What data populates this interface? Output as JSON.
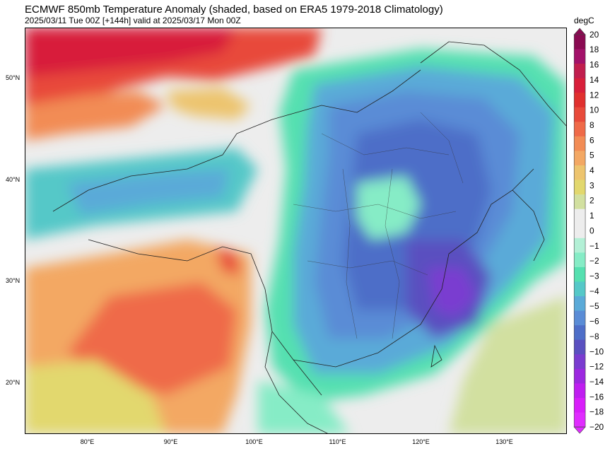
{
  "header": {
    "title": "ECMWF 850mb Temperature Anomaly (shaded, based on ERA5 1979-2018 Climatology)",
    "subtitle": "2025/03/11 Tue 00Z [+144h] valid at 2025/03/17 Mon 00Z"
  },
  "map": {
    "lon_range": [
      72.5,
      137.5
    ],
    "lat_range": [
      15,
      55
    ],
    "lon_ticks": [
      "80°E",
      "90°E",
      "100°E",
      "110°E",
      "120°E",
      "130°E"
    ],
    "lat_ticks": [
      "50°N",
      "40°N",
      "30°N",
      "20°N"
    ]
  },
  "colorbar": {
    "unit": "degC",
    "levels": [
      "20",
      "18",
      "16",
      "14",
      "12",
      "10",
      "8",
      "6",
      "5",
      "4",
      "3",
      "2",
      "1",
      "0",
      "−1",
      "−2",
      "−3",
      "−4",
      "−5",
      "−6",
      "−8",
      "−10",
      "−12",
      "−14",
      "−16",
      "−18",
      "−20"
    ],
    "colors": [
      "#8a0a52",
      "#a3126a",
      "#c11e4e",
      "#d81f3a",
      "#e0302e",
      "#e84a3a",
      "#ef6a48",
      "#f28c55",
      "#f3a864",
      "#edc46e",
      "#e2d86e",
      "#d2e0a0",
      "#ededed",
      "#ededed",
      "#b3f0d6",
      "#86ecc6",
      "#55e0b0",
      "#55c8c8",
      "#5aaad8",
      "#5a8cd6",
      "#4e6ec8",
      "#5a50c0",
      "#7a3cd0",
      "#9c28e0",
      "#bf1ef0",
      "#d81efa",
      "#e02cff"
    ]
  }
}
